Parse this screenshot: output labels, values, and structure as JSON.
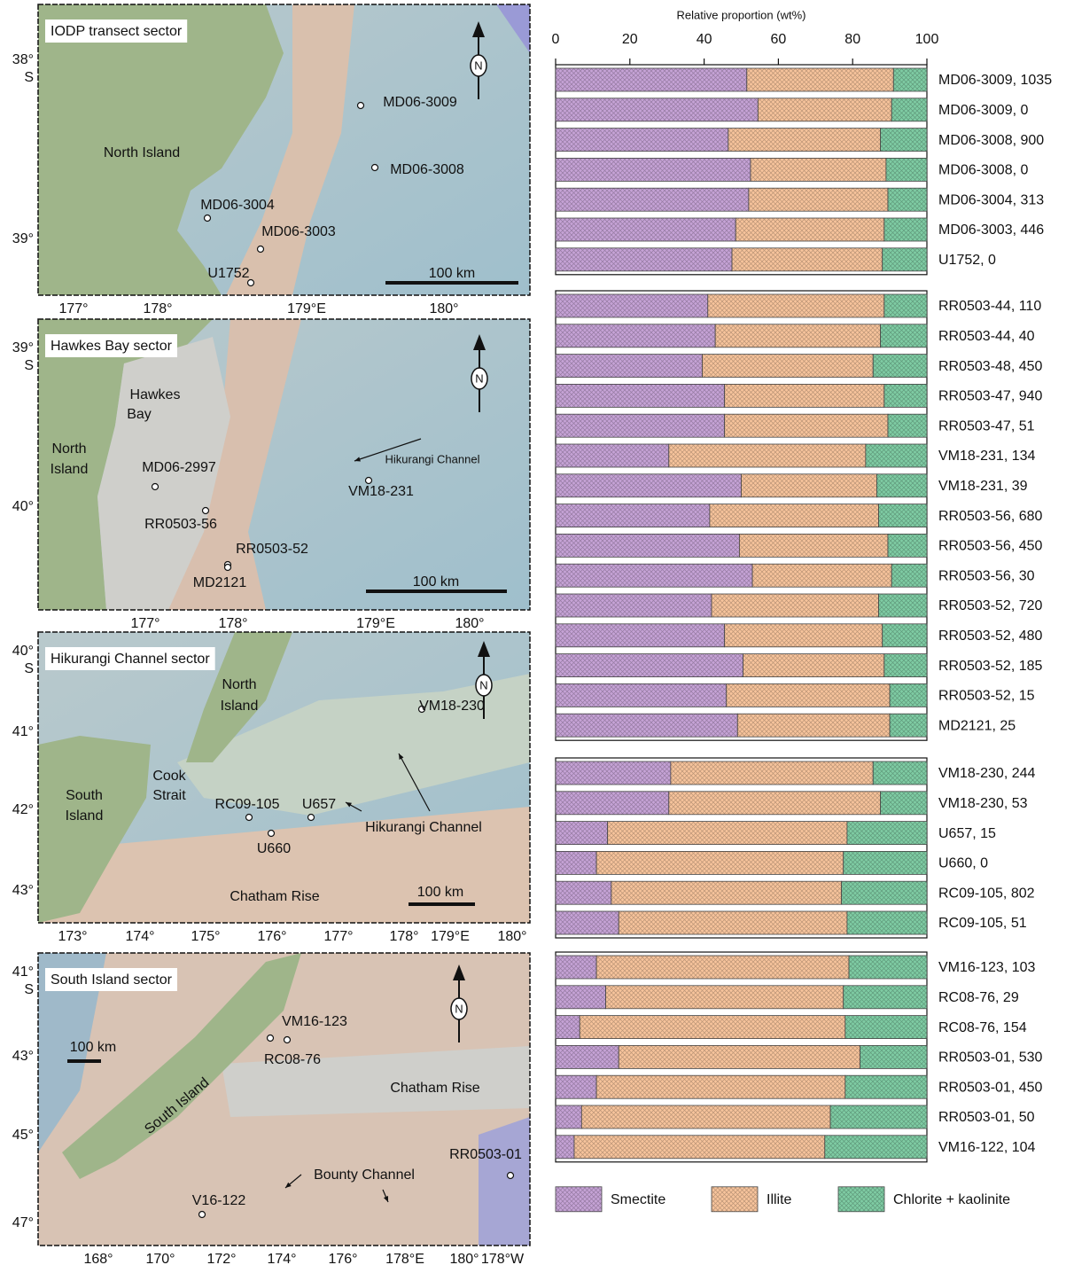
{
  "chart_data": [
    {
      "type": "bar",
      "orientation": "horizontal",
      "stacked": true,
      "x_label": "Relative proportion (wt%)",
      "xlim": [
        0,
        100
      ],
      "xticks": [
        0,
        20,
        40,
        60,
        80,
        100
      ],
      "categories": [
        "MD06-3009, 1035",
        "MD06-3009, 0",
        "MD06-3008, 900",
        "MD06-3008, 0",
        "MD06-3004, 313",
        "MD06-3003, 446",
        "U1752, 0"
      ],
      "series": [
        {
          "color": "#c6a3d6",
          "values": [
            51.5,
            54.5,
            46.5,
            52.5,
            52,
            48.5,
            47.5
          ]
        },
        {
          "color": "#f7c49c",
          "values": [
            39.5,
            36,
            41,
            36.5,
            37.5,
            40,
            40.5
          ]
        },
        {
          "color": "#7fcca4",
          "values": [
            9,
            9.5,
            12.5,
            11,
            10.5,
            11.5,
            12
          ]
        }
      ]
    },
    {
      "type": "bar",
      "orientation": "horizontal",
      "stacked": true,
      "xlim": [
        0,
        100
      ],
      "categories": [
        "RR0503-44, 110",
        "RR0503-44, 40",
        "RR0503-48, 450",
        "RR0503-47, 940",
        "RR0503-47, 51",
        "VM18-231, 134",
        "VM18-231, 39",
        "RR0503-56, 680",
        "RR0503-56, 450",
        "RR0503-56, 30",
        "RR0503-52, 720",
        "RR0503-52, 480",
        "RR0503-52, 185",
        "RR0503-52, 15",
        "MD2121, 25"
      ],
      "series": [
        {
          "color": "#c6a3d6",
          "values": [
            41,
            43,
            39.5,
            45.5,
            45.5,
            30.5,
            50,
            41.5,
            49.5,
            53,
            42,
            45.5,
            50.5,
            46,
            49
          ]
        },
        {
          "color": "#f7c49c",
          "values": [
            47.5,
            44.5,
            46,
            43,
            44,
            53,
            36.5,
            45.5,
            40,
            37.5,
            45,
            42.5,
            38,
            44,
            41
          ]
        },
        {
          "color": "#7fcca4",
          "values": [
            11.5,
            12.5,
            14.5,
            11.5,
            10.5,
            16.5,
            13.5,
            13,
            10.5,
            9.5,
            13,
            12,
            11.5,
            10,
            10
          ]
        }
      ]
    },
    {
      "type": "bar",
      "orientation": "horizontal",
      "stacked": true,
      "xlim": [
        0,
        100
      ],
      "categories": [
        "VM18-230, 244",
        "VM18-230, 53",
        "U657, 15",
        "U660, 0",
        "RC09-105, 802",
        "RC09-105, 51"
      ],
      "series": [
        {
          "color": "#c6a3d6",
          "values": [
            31,
            30.5,
            14,
            11,
            15,
            17
          ]
        },
        {
          "color": "#f7c49c",
          "values": [
            54.5,
            57,
            64.5,
            66.5,
            62,
            61.5
          ]
        },
        {
          "color": "#7fcca4",
          "values": [
            14.5,
            12.5,
            21.5,
            22.5,
            23,
            21.5
          ]
        }
      ]
    },
    {
      "type": "bar",
      "orientation": "horizontal",
      "stacked": true,
      "xlim": [
        0,
        100
      ],
      "categories": [
        "VM16-123, 103",
        "RC08-76, 29",
        "RC08-76, 154",
        "RR0503-01, 530",
        "RR0503-01, 450",
        "RR0503-01, 50",
        "VM16-122, 104"
      ],
      "series": [
        {
          "name": "Smectite",
          "color": "#c6a3d6",
          "values": [
            11,
            13.5,
            6.5,
            17,
            11,
            7,
            5
          ]
        },
        {
          "name": "Illite",
          "color": "#f7c49c",
          "values": [
            68,
            64,
            71.5,
            65,
            67,
            67,
            67.5
          ]
        },
        {
          "name": "Chlorite + kaolinite",
          "color": "#7fcca4",
          "values": [
            21,
            22.5,
            22,
            18,
            22,
            26,
            27.5
          ]
        }
      ]
    }
  ],
  "maps": [
    {
      "title": "IODP transect sector",
      "compass": "N",
      "scale": "100 km",
      "y_unit": "S",
      "xticks": [
        "177°",
        "178°",
        "179°E",
        "180°"
      ],
      "yticks": [
        "38°",
        "39°"
      ],
      "labels": [
        "North Island",
        "MD06-3009",
        "MD06-3008",
        "MD06-3004",
        "MD06-3003",
        "U1752"
      ]
    },
    {
      "title": "Hawkes Bay sector",
      "compass": "N",
      "scale": "100 km",
      "y_unit": "S",
      "xticks": [
        "177°",
        "178°",
        "179°E",
        "180°"
      ],
      "yticks": [
        "39°",
        "40°"
      ],
      "labels": [
        "Hawkes",
        "Bay",
        "North",
        "Island",
        "MD06-2997",
        "RR0503-56",
        "RR0503-52",
        "MD2121",
        "VM18-231",
        "Hikurangi Channel"
      ]
    },
    {
      "title": "Hikurangi Channel sector",
      "compass": "N",
      "scale": "100 km",
      "y_unit": "S",
      "xticks": [
        "173°",
        "174°",
        "175°",
        "176°",
        "177°",
        "178°",
        "179°E",
        "180°"
      ],
      "yticks": [
        "40°",
        "41°",
        "42°",
        "43°"
      ],
      "labels": [
        "North",
        "Island",
        "South",
        "Island",
        "Cook",
        "Strait",
        "RC09-105",
        "U657",
        "U660",
        "Hikurangi Channel",
        "VM18-230",
        "Chatham Rise"
      ]
    },
    {
      "title": "South Island sector",
      "compass": "N",
      "scale": "100 km",
      "y_unit": "S",
      "xticks": [
        "168°",
        "170°",
        "172°",
        "174°",
        "176°",
        "178°E",
        "180°",
        "178°W"
      ],
      "yticks": [
        "41°",
        "43°",
        "45°",
        "47°"
      ],
      "labels": [
        "VM16-123",
        "RC08-76",
        "South Island",
        "Chatham Rise",
        "Bounty Channel",
        "RR0503-01",
        "V16-122"
      ]
    }
  ]
}
